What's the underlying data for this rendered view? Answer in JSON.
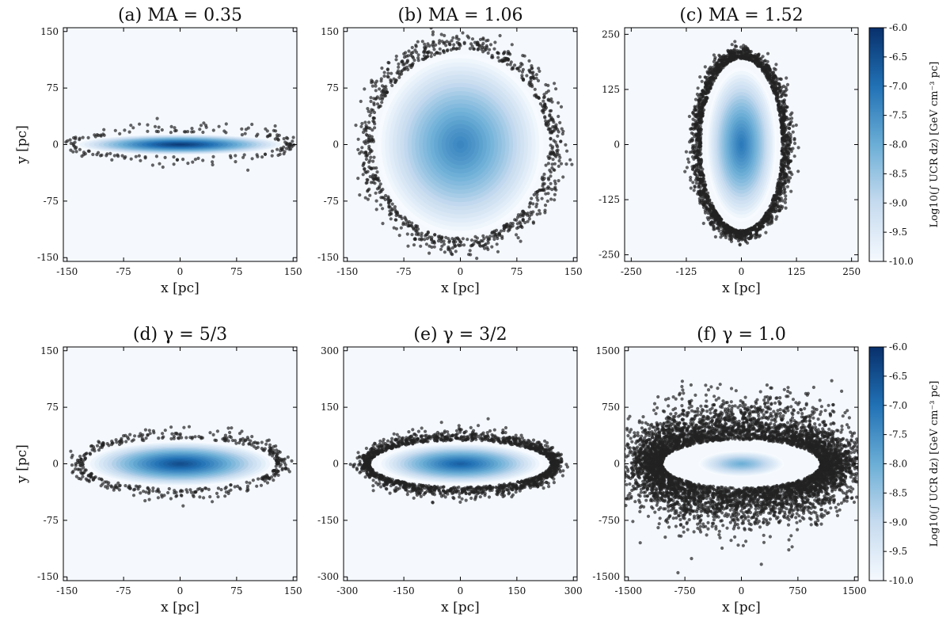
{
  "colorbar": {
    "label": "Log10(∫ UCR dz) [GeV cm⁻³ pc]",
    "range": [
      -10.0,
      -6.0
    ],
    "ticks": [
      -6.0,
      -6.5,
      -7.0,
      -7.5,
      -8.0,
      -8.5,
      -9.0,
      -9.5,
      -10.0
    ],
    "tick_labels": [
      "-6.0",
      "-6.5",
      "-7.0",
      "-7.5",
      "-8.0",
      "-8.5",
      "-9.0",
      "-9.5",
      "-10.0"
    ],
    "colors": {
      "low": "#f5f9fe",
      "high": "#08306b"
    }
  },
  "colors": {
    "background": "#f5f9fe",
    "point": "#222222"
  },
  "chart_data": [
    {
      "type": "heatmap",
      "title": "(a) MA = 0.35",
      "xlabel": "x [pc]",
      "ylabel": "y [pc]",
      "xlim": [
        -155,
        155
      ],
      "ylim": [
        -155,
        155
      ],
      "xticks": [
        -150,
        -75,
        0,
        75,
        150
      ],
      "yticks": [
        -150,
        -75,
        0,
        75,
        150
      ],
      "core": {
        "a": 140,
        "b": 14,
        "peak": -6.1
      },
      "ring": {
        "a": 140,
        "b": 16,
        "width": 7,
        "count": 180
      }
    },
    {
      "type": "heatmap",
      "title": "(b) MA = 1.06",
      "xlabel": "x [pc]",
      "ylabel": "",
      "xlim": [
        -155,
        155
      ],
      "ylim": [
        -155,
        155
      ],
      "xticks": [
        -150,
        -75,
        0,
        75,
        150
      ],
      "yticks": [
        -150,
        -75,
        0,
        75,
        150
      ],
      "core": {
        "a": 110,
        "b": 120,
        "peak": -7.3
      },
      "ring": {
        "a": 115,
        "b": 124,
        "width": 12,
        "count": 900
      }
    },
    {
      "type": "heatmap",
      "title": "(c) MA = 1.52",
      "xlabel": "x [pc]",
      "ylabel": "",
      "xlim": [
        -265,
        265
      ],
      "ylim": [
        -265,
        265
      ],
      "xticks": [
        -250,
        -125,
        0,
        125,
        250
      ],
      "yticks": [
        -250,
        -125,
        0,
        125,
        250
      ],
      "core": {
        "a": 80,
        "b": 175,
        "peak": -7.1
      },
      "ring": {
        "a": 92,
        "b": 195,
        "width": 13,
        "count": 2000
      }
    },
    {
      "type": "heatmap",
      "title": "(d) γ = 5/3",
      "xlabel": "x [pc]",
      "ylabel": "y [pc]",
      "xlim": [
        -155,
        155
      ],
      "ylim": [
        -155,
        155
      ],
      "xticks": [
        -150,
        -75,
        0,
        75,
        150
      ],
      "yticks": [
        -150,
        -75,
        0,
        75,
        150
      ],
      "core": {
        "a": 125,
        "b": 30,
        "peak": -6.4
      },
      "ring": {
        "a": 128,
        "b": 33,
        "width": 8,
        "count": 420
      }
    },
    {
      "type": "heatmap",
      "title": "(e) γ = 3/2",
      "xlabel": "x [pc]",
      "ylabel": "",
      "xlim": [
        -310,
        310
      ],
      "ylim": [
        -310,
        310
      ],
      "xticks": [
        -300,
        -150,
        0,
        150,
        300
      ],
      "yticks": [
        -300,
        -150,
        0,
        150,
        300
      ],
      "core": {
        "a": 220,
        "b": 55,
        "peak": -6.7
      },
      "ring": {
        "a": 240,
        "b": 62,
        "width": 16,
        "count": 1500
      }
    },
    {
      "type": "heatmap",
      "title": "(f) γ = 1.0",
      "xlabel": "x [pc]",
      "ylabel": "",
      "xlim": [
        -1550,
        1550
      ],
      "ylim": [
        -1550,
        1550
      ],
      "xticks": [
        -1500,
        -750,
        0,
        750,
        1500
      ],
      "yticks": [
        -1500,
        -750,
        0,
        750,
        1500
      ],
      "core": {
        "a": 570,
        "b": 170,
        "peak": -8.0
      },
      "ring": {
        "a": 1050,
        "b": 320,
        "width": 280,
        "count": 5500
      }
    }
  ]
}
